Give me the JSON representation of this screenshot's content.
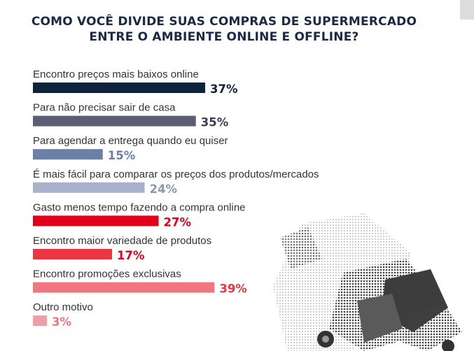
{
  "title": {
    "line1": "COMO VOCÊ DIVIDE SUAS COMPRAS DE SUPERMERCADO",
    "line2": "ENTRE O AMBIENTE ONLINE E OFFLINE?"
  },
  "colors": {
    "title": "#1b2a44",
    "label": "#333333",
    "navy": "#10233d",
    "slate": "#5d5e74",
    "steel": "#6a80a8",
    "lightblue": "#a8b2cc",
    "red": "#e3001b",
    "coral": "#ec3540",
    "pink": "#f07680",
    "lightpink": "#f29ca8"
  },
  "chart_data": {
    "type": "bar",
    "orientation": "horizontal",
    "title": "COMO VOCÊ DIVIDE SUAS COMPRAS DE SUPERMERCADO ENTRE O AMBIENTE ONLINE E OFFLINE?",
    "xlabel": "",
    "ylabel": "",
    "xlim": [
      0,
      39
    ],
    "unit": "%",
    "grid": false,
    "legend": "none",
    "categories": [
      "Encontro preços mais baixos online",
      "Para não precisar sair de casa",
      "Para agendar a entrega quando eu quiser",
      "É mais fácil para comparar os preços dos produtos/mercados",
      "Gasto menos tempo fazendo a compra online",
      "Encontro maior variedade de produtos",
      "Encontro promoções exclusivas",
      "Outro motivo"
    ],
    "values": [
      37,
      35,
      15,
      24,
      27,
      17,
      39,
      3
    ],
    "value_labels": [
      "37%",
      "35%",
      "15%",
      "24%",
      "27%",
      "17%",
      "39%",
      "3%"
    ],
    "bar_colors": [
      "#10233d",
      "#5d5e74",
      "#6a80a8",
      "#a8b2cc",
      "#e3001b",
      "#ec3540",
      "#f07680",
      "#f29ca8"
    ],
    "label_colors": [
      "#10233d",
      "#3c3d52",
      "#6a80a8",
      "#8b97b5",
      "#e3001b",
      "#e3001b",
      "#ec3540",
      "#f07680"
    ]
  }
}
